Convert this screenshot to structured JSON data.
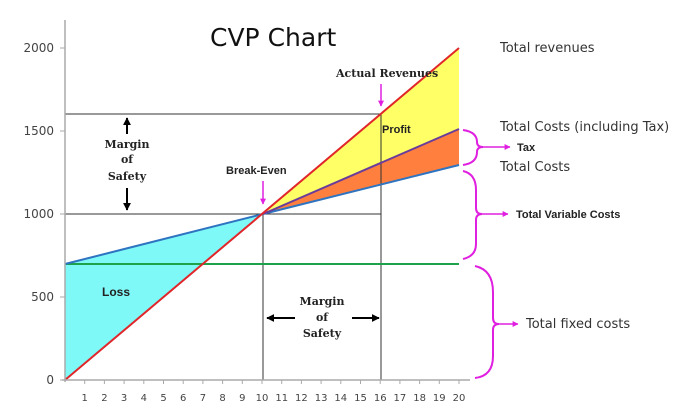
{
  "chart_data": {
    "type": "line",
    "title": "CVP Chart",
    "xlabel": "",
    "ylabel": "",
    "xlim": [
      0,
      20
    ],
    "ylim": [
      0,
      2000
    ],
    "x_ticks": [
      1,
      2,
      3,
      4,
      5,
      6,
      7,
      8,
      9,
      10,
      11,
      12,
      13,
      14,
      15,
      16,
      17,
      18,
      19,
      20
    ],
    "y_ticks": [
      0,
      500,
      1000,
      1500,
      2000
    ],
    "grid": false,
    "series": [
      {
        "name": "Total revenues",
        "color": "#e0262a",
        "x": [
          0,
          20
        ],
        "values": [
          0,
          2000
        ]
      },
      {
        "name": "Total Costs (including Tax)",
        "color": "#6a3d9a",
        "x": [
          10,
          20
        ],
        "values": [
          1000,
          1510
        ]
      },
      {
        "name": "Total Costs",
        "color": "#2e74c0",
        "x": [
          0,
          10,
          20
        ],
        "values": [
          700,
          1000,
          1300
        ]
      },
      {
        "name": "Total fixed costs",
        "color": "#1fa34a",
        "x": [
          0,
          20
        ],
        "values": [
          700,
          700
        ]
      }
    ],
    "regions": [
      {
        "name": "Loss",
        "color": "#7ff8f8"
      },
      {
        "name": "Profit",
        "color": "#ffff66"
      },
      {
        "name": "Tax",
        "color": "#ff7f3f"
      }
    ],
    "reference_lines": {
      "break_even": {
        "x": 10,
        "y": 1000
      },
      "actual_revenues": {
        "x": 16,
        "y": 1600
      }
    },
    "annotations": [
      "Actual Revenues",
      "Break-Even",
      "Profit",
      "Loss",
      "Margin of Safety (vertical)",
      "Margin of Safety (horizontal)"
    ],
    "legend_right": [
      "Total revenues",
      "Total Costs (including Tax)",
      "Tax",
      "Total Costs",
      "Total Variable Costs",
      "Total fixed costs"
    ]
  },
  "labels": {
    "title": "CVP Chart",
    "y_ticks": [
      "0",
      "500",
      "1000",
      "1500",
      "2000"
    ],
    "x_ticks": [
      "1",
      "2",
      "3",
      "4",
      "5",
      "6",
      "7",
      "8",
      "9",
      "10",
      "11",
      "12",
      "13",
      "14",
      "15",
      "16",
      "17",
      "18",
      "19",
      "20"
    ],
    "actual_revenues": "Actual Revenues",
    "break_even": "Break-Even",
    "profit": "Profit",
    "loss": "Loss",
    "mos_vertical": [
      "Margin",
      "of",
      "Safety"
    ],
    "mos_horizontal": [
      "Margin",
      "of",
      "Safety"
    ],
    "total_revenues": "Total revenues",
    "total_costs_incl_tax": "Total Costs (including Tax)",
    "tax": "Tax",
    "total_costs": "Total Costs",
    "total_variable_costs": "Total Variable Costs",
    "total_fixed_costs": "Total fixed costs"
  },
  "colors": {
    "revenue": "#e0262a",
    "costs_tax": "#6a3d9a",
    "costs": "#2e74c0",
    "fixed": "#1fa34a",
    "loss_fill": "#7ff8f8",
    "profit_fill": "#ffff66",
    "tax_fill": "#ff7f3f",
    "pointer": "#e020e0"
  }
}
